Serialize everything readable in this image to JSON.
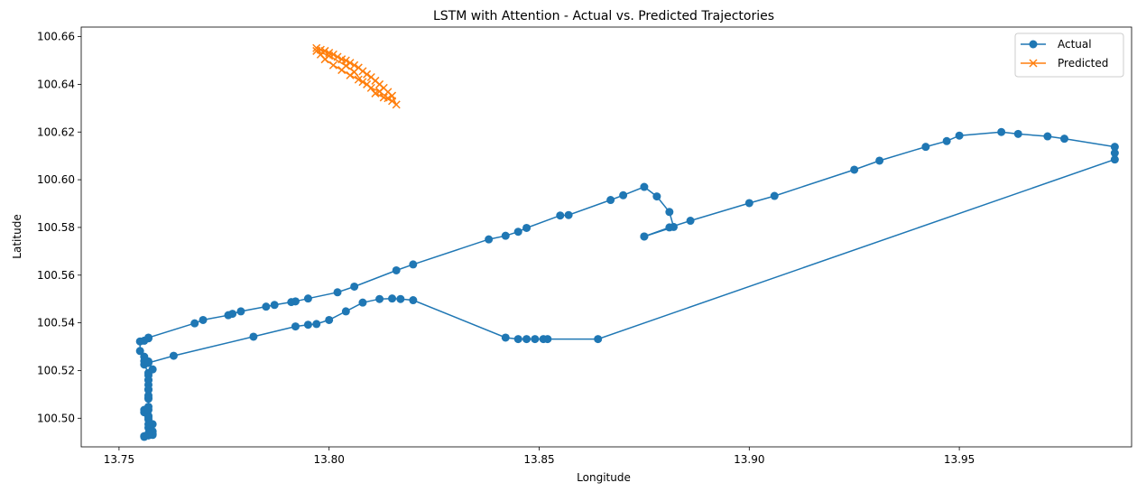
{
  "chart_data": {
    "type": "line",
    "title": "LSTM with Attention - Actual vs. Predicted Trajectories",
    "xlabel": "Longitude",
    "ylabel": "Latitude",
    "xlim": [
      13.741,
      13.991
    ],
    "ylim": [
      100.488,
      100.664
    ],
    "xticks": [
      "13.75",
      "13.80",
      "13.85",
      "13.90",
      "13.95"
    ],
    "yticks": [
      "100.50",
      "100.52",
      "100.54",
      "100.56",
      "100.58",
      "100.60",
      "100.62",
      "100.64",
      "100.66"
    ],
    "grid": false,
    "legend_position": "top-right",
    "series": [
      {
        "name": "Actual",
        "color": "#1f77b4",
        "marker": "circle",
        "points": [
          [
            13.875,
            100.5762
          ],
          [
            13.882,
            100.5802
          ],
          [
            13.881,
            100.5865
          ],
          [
            13.878,
            100.593
          ],
          [
            13.875,
            100.597
          ],
          [
            13.87,
            100.5935
          ],
          [
            13.867,
            100.5915
          ],
          [
            13.857,
            100.5852
          ],
          [
            13.855,
            100.585
          ],
          [
            13.847,
            100.5798
          ],
          [
            13.845,
            100.5782
          ],
          [
            13.842,
            100.5765
          ],
          [
            13.838,
            100.575
          ],
          [
            13.82,
            100.5645
          ],
          [
            13.816,
            100.562
          ],
          [
            13.806,
            100.5552
          ],
          [
            13.802,
            100.5528
          ],
          [
            13.795,
            100.5502
          ],
          [
            13.792,
            100.549
          ],
          [
            13.791,
            100.5487
          ],
          [
            13.787,
            100.5475
          ],
          [
            13.785,
            100.5468
          ],
          [
            13.779,
            100.5448
          ],
          [
            13.777,
            100.5438
          ],
          [
            13.776,
            100.5432
          ],
          [
            13.77,
            100.5412
          ],
          [
            13.768,
            100.5398
          ],
          [
            13.757,
            100.5338
          ],
          [
            13.757,
            100.5335
          ],
          [
            13.756,
            100.5325
          ],
          [
            13.755,
            100.5322
          ],
          [
            13.755,
            100.5282
          ],
          [
            13.756,
            100.5258
          ],
          [
            13.757,
            100.5238
          ],
          [
            13.758,
            100.5205
          ],
          [
            13.757,
            100.518
          ],
          [
            13.757,
            100.516
          ],
          [
            13.757,
            100.514
          ],
          [
            13.757,
            100.512
          ],
          [
            13.757,
            100.5095
          ],
          [
            13.757,
            100.5082
          ],
          [
            13.757,
            100.5048
          ],
          [
            13.756,
            100.5035
          ],
          [
            13.756,
            100.5025
          ],
          [
            13.757,
            100.501
          ],
          [
            13.757,
            100.4995
          ],
          [
            13.758,
            100.4975
          ],
          [
            13.757,
            100.496
          ],
          [
            13.758,
            100.4945
          ],
          [
            13.758,
            100.4935
          ],
          [
            13.757,
            100.4928
          ],
          [
            13.756,
            100.4922
          ],
          [
            13.758,
            100.493
          ],
          [
            13.757,
            100.4935
          ],
          [
            13.756,
            100.4925
          ],
          [
            13.757,
            100.4975
          ],
          [
            13.757,
            100.5005
          ],
          [
            13.757,
            100.5035
          ],
          [
            13.757,
            100.5085
          ],
          [
            13.757,
            100.512
          ],
          [
            13.757,
            100.516
          ],
          [
            13.757,
            100.519
          ],
          [
            13.756,
            100.5225
          ],
          [
            13.756,
            100.524
          ],
          [
            13.757,
            100.5232
          ],
          [
            13.763,
            100.5262
          ],
          [
            13.782,
            100.5342
          ],
          [
            13.792,
            100.5385
          ],
          [
            13.795,
            100.5392
          ],
          [
            13.797,
            100.5395
          ],
          [
            13.8,
            100.5412
          ],
          [
            13.804,
            100.5448
          ],
          [
            13.808,
            100.5485
          ],
          [
            13.812,
            100.55
          ],
          [
            13.815,
            100.5502
          ],
          [
            13.817,
            100.55
          ],
          [
            13.82,
            100.5495
          ],
          [
            13.842,
            100.5338
          ],
          [
            13.845,
            100.5332
          ],
          [
            13.847,
            100.5332
          ],
          [
            13.849,
            100.5332
          ],
          [
            13.851,
            100.5332
          ],
          [
            13.852,
            100.5332
          ],
          [
            13.864,
            100.5332
          ],
          [
            13.987,
            100.6085
          ],
          [
            13.987,
            100.6112
          ],
          [
            13.987,
            100.6138
          ],
          [
            13.975,
            100.6172
          ],
          [
            13.971,
            100.6182
          ],
          [
            13.964,
            100.6192
          ],
          [
            13.96,
            100.62
          ],
          [
            13.95,
            100.6185
          ],
          [
            13.947,
            100.6162
          ],
          [
            13.942,
            100.6138
          ],
          [
            13.931,
            100.608
          ],
          [
            13.925,
            100.6042
          ],
          [
            13.906,
            100.5932
          ],
          [
            13.9,
            100.5902
          ],
          [
            13.886,
            100.5828
          ],
          [
            13.881,
            100.58
          ],
          [
            13.875,
            100.5762
          ]
        ]
      },
      {
        "name": "Predicted",
        "color": "#ff7f0e",
        "marker": "x",
        "points": [
          [
            13.797,
            100.6552
          ],
          [
            13.798,
            100.6545
          ],
          [
            13.799,
            100.654
          ],
          [
            13.8,
            100.6532
          ],
          [
            13.801,
            100.6525
          ],
          [
            13.802,
            100.6515
          ],
          [
            13.803,
            100.6505
          ],
          [
            13.804,
            100.65
          ],
          [
            13.805,
            100.649
          ],
          [
            13.806,
            100.648
          ],
          [
            13.807,
            100.647
          ],
          [
            13.808,
            100.6455
          ],
          [
            13.809,
            100.6442
          ],
          [
            13.81,
            100.643
          ],
          [
            13.811,
            100.6415
          ],
          [
            13.812,
            100.64
          ],
          [
            13.813,
            100.6385
          ],
          [
            13.814,
            100.6368
          ],
          [
            13.815,
            100.6352
          ],
          [
            13.816,
            100.6315
          ],
          [
            13.815,
            100.633
          ],
          [
            13.813,
            100.6345
          ],
          [
            13.811,
            100.6362
          ],
          [
            13.809,
            100.64
          ],
          [
            13.807,
            100.642
          ],
          [
            13.805,
            100.6438
          ],
          [
            13.803,
            100.646
          ],
          [
            13.801,
            100.648
          ],
          [
            13.799,
            100.6505
          ],
          [
            13.798,
            100.6525
          ],
          [
            13.797,
            100.654
          ],
          [
            13.8,
            100.652
          ],
          [
            13.804,
            100.6478
          ],
          [
            13.806,
            100.6452
          ],
          [
            13.808,
            100.641
          ],
          [
            13.81,
            100.6385
          ],
          [
            13.812,
            100.637
          ],
          [
            13.814,
            100.6342
          ]
        ]
      }
    ]
  }
}
